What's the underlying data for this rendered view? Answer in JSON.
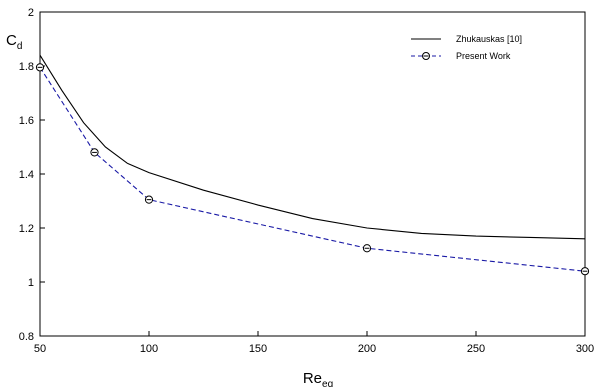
{
  "chart_data": {
    "type": "line",
    "xlabel": "Re",
    "xlabel_sub": "eq",
    "ylabel": "C",
    "ylabel_sub": "d",
    "xlim": [
      50,
      300
    ],
    "ylim": [
      0.8,
      2
    ],
    "x_ticks": [
      "50",
      "100",
      "150",
      "200",
      "250",
      "300"
    ],
    "y_ticks": [
      "0.8",
      "1",
      "1.2",
      "1.4",
      "1.6",
      "1.8",
      "2"
    ],
    "grid": false,
    "legend_position": "top-right",
    "series": [
      {
        "name": "Zhukauskas [10]",
        "style": "solid",
        "color": "#000000",
        "x": [
          50,
          60,
          70,
          80,
          90,
          100,
          125,
          150,
          175,
          200,
          225,
          250,
          275,
          300
        ],
        "y": [
          1.84,
          1.71,
          1.59,
          1.5,
          1.44,
          1.405,
          1.34,
          1.285,
          1.235,
          1.2,
          1.18,
          1.17,
          1.165,
          1.16
        ]
      },
      {
        "name": "Present Work",
        "style": "dashed",
        "color": "#1a1aa6",
        "marker": "circle",
        "x": [
          50,
          75,
          100,
          200,
          300
        ],
        "y": [
          1.795,
          1.48,
          1.305,
          1.125,
          1.04
        ]
      }
    ]
  }
}
